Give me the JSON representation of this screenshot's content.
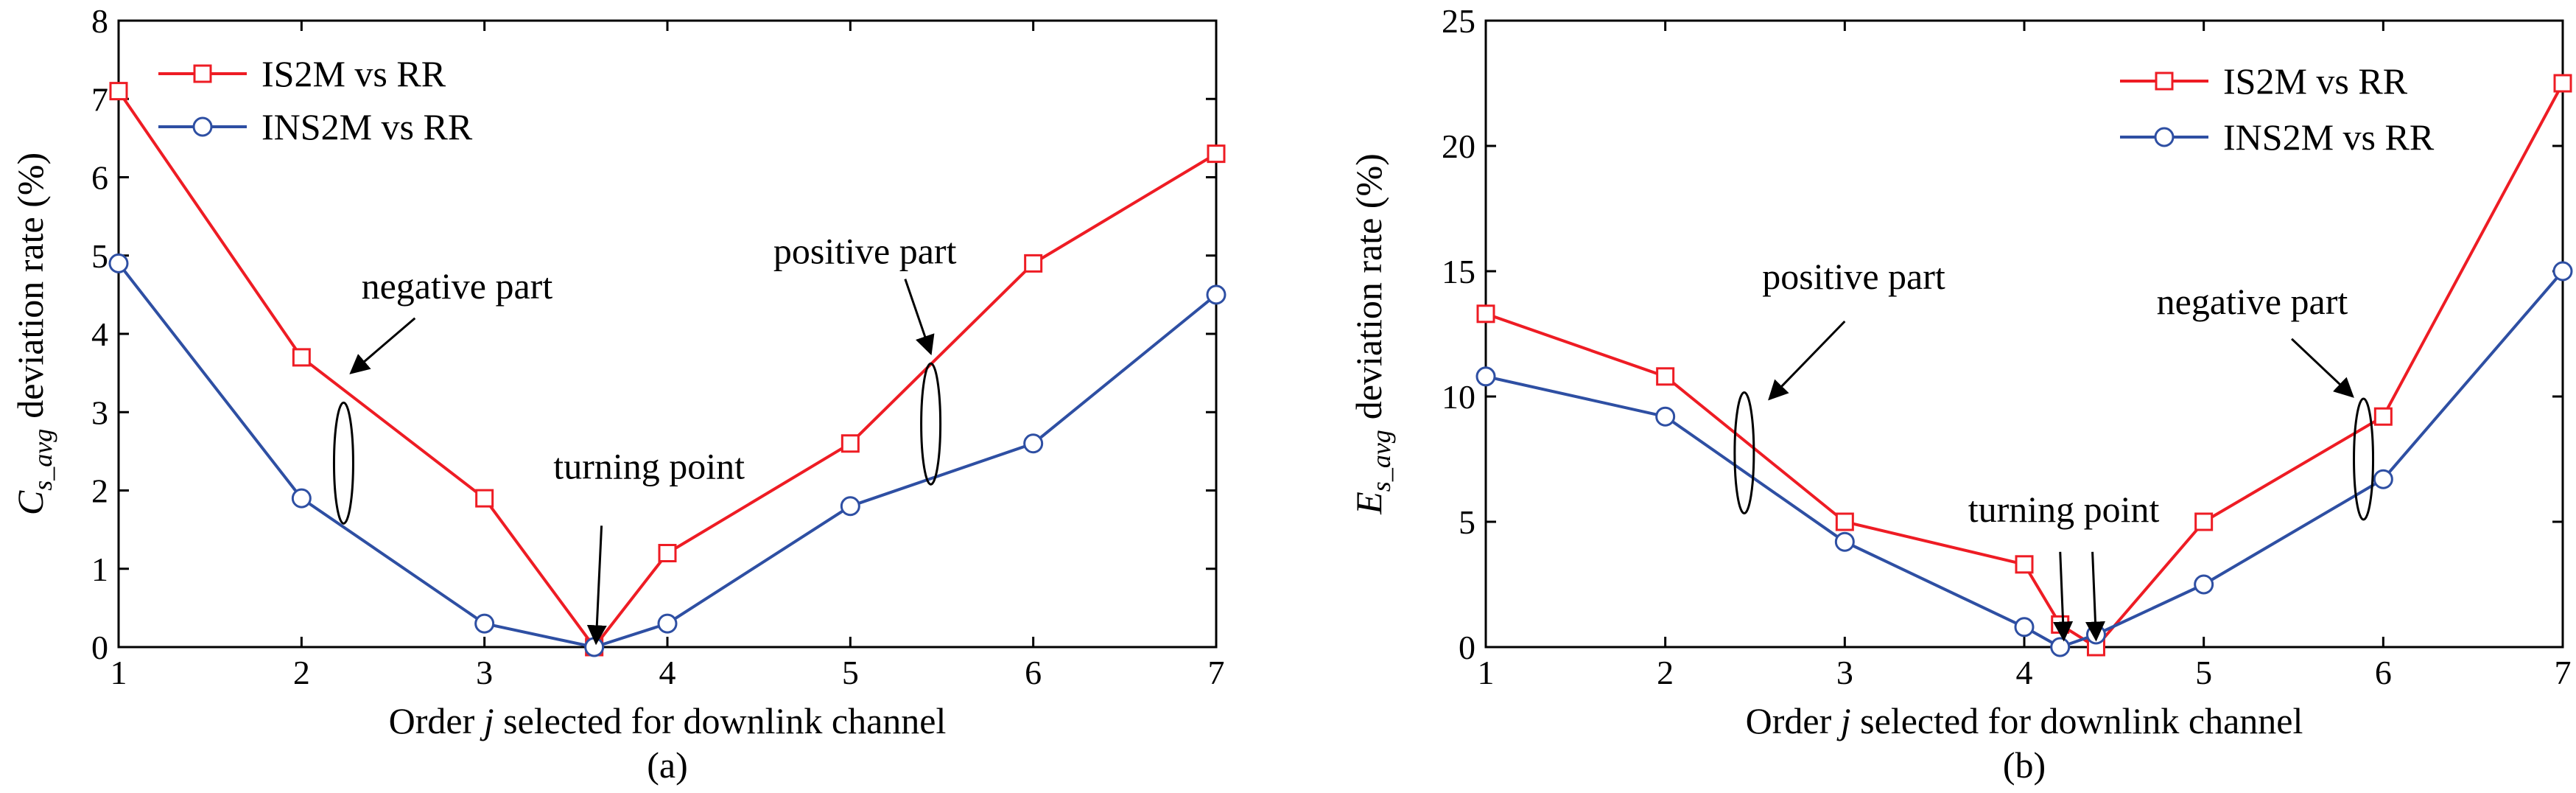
{
  "colors": {
    "series1": "#ee1c24",
    "series2": "#2e4fa3",
    "axis": "#000000"
  },
  "chart_data": [
    {
      "type": "line",
      "panel": "(a)",
      "xlabel": "Order j selected for downlink channel",
      "xlabel_parts": {
        "pre": "Order ",
        "italic": "j",
        "post": " selected for downlink channel"
      },
      "ylabel": "C_s_avg deviation rate (%)",
      "ylabel_parts": {
        "sym": "C",
        "sub": "s_avg",
        "rest": "deviation rate (%)"
      },
      "xlim": [
        1,
        7
      ],
      "ylim": [
        0,
        8
      ],
      "xticks": [
        1,
        2,
        3,
        4,
        5,
        6,
        7
      ],
      "yticks": [
        0,
        1,
        2,
        3,
        4,
        5,
        6,
        7,
        8
      ],
      "legend_position": "top-left",
      "series": [
        {
          "name": "IS2M vs RR",
          "marker": "square",
          "x": [
            1,
            2,
            3,
            3.6,
            4,
            5,
            6,
            7
          ],
          "y": [
            7.1,
            3.7,
            1.9,
            0.0,
            1.2,
            2.6,
            4.9,
            6.3
          ]
        },
        {
          "name": "INS2M vs RR",
          "marker": "circle",
          "x": [
            1,
            2,
            3,
            3.6,
            4,
            5,
            6,
            7
          ],
          "y": [
            4.9,
            1.9,
            0.3,
            0.0,
            0.3,
            1.8,
            2.6,
            4.5
          ]
        }
      ],
      "annotations": [
        {
          "text": "negative part",
          "kind": "ellipse-arrow",
          "ellipse_at": [
            2.23,
            2.35
          ],
          "text_at": [
            2.85,
            4.45
          ],
          "arrow_from": [
            2.62,
            4.2
          ],
          "arrow_to": [
            2.27,
            3.5
          ]
        },
        {
          "text": "positive part",
          "kind": "ellipse-arrow",
          "ellipse_at": [
            5.44,
            2.85
          ],
          "text_at": [
            5.08,
            4.9
          ],
          "arrow_from": [
            5.3,
            4.7
          ],
          "arrow_to": [
            5.44,
            3.75
          ]
        },
        {
          "text": "turning point",
          "kind": "arrow",
          "text_at": [
            3.9,
            2.15
          ],
          "arrow_from": [
            3.64,
            1.55
          ],
          "arrow_to": [
            3.61,
            0.05
          ]
        }
      ]
    },
    {
      "type": "line",
      "panel": "(b)",
      "xlabel": "Order j selected for downlink channel",
      "xlabel_parts": {
        "pre": "Order ",
        "italic": "j",
        "post": " selected for downlink channel"
      },
      "ylabel": "E_s_avg deviation rate (%)",
      "ylabel_parts": {
        "sym": "E",
        "sub": "s_avg",
        "rest": "deviation rate (%)"
      },
      "xlim": [
        1,
        7
      ],
      "ylim": [
        0,
        25
      ],
      "xticks": [
        1,
        2,
        3,
        4,
        5,
        6,
        7
      ],
      "yticks": [
        0,
        5,
        10,
        15,
        20,
        25
      ],
      "legend_position": "top-right",
      "series": [
        {
          "name": "IS2M vs RR",
          "marker": "square",
          "x": [
            1,
            2,
            3,
            4,
            4.2,
            4.4,
            5,
            6,
            7
          ],
          "y": [
            13.3,
            10.8,
            5.0,
            3.3,
            0.9,
            0.0,
            5.0,
            9.2,
            22.5
          ]
        },
        {
          "name": "INS2M vs RR",
          "marker": "circle",
          "x": [
            1,
            2,
            3,
            4,
            4.2,
            4.4,
            5,
            6,
            7
          ],
          "y": [
            10.8,
            9.2,
            4.2,
            0.8,
            0.0,
            0.5,
            2.5,
            6.7,
            15.0
          ]
        }
      ],
      "annotations": [
        {
          "text": "positive part",
          "kind": "ellipse-arrow",
          "ellipse_at": [
            2.44,
            7.75
          ],
          "text_at": [
            3.05,
            14.3
          ],
          "arrow_from": [
            3.0,
            13.0
          ],
          "arrow_to": [
            2.58,
            9.9
          ]
        },
        {
          "text": "negative part",
          "kind": "ellipse-arrow",
          "ellipse_at": [
            5.89,
            7.5
          ],
          "text_at": [
            5.27,
            13.3
          ],
          "arrow_from": [
            5.49,
            12.3
          ],
          "arrow_to": [
            5.83,
            10.0
          ]
        },
        {
          "text": "turning point",
          "kind": "arrow",
          "text_at": [
            4.22,
            5.0
          ],
          "arrow_from": [
            4.2,
            3.8
          ],
          "arrow_to": [
            4.22,
            0.3
          ]
        },
        {
          "text": "",
          "kind": "arrow",
          "arrow_from": [
            4.38,
            3.8
          ],
          "arrow_to": [
            4.4,
            0.3
          ]
        }
      ]
    }
  ]
}
